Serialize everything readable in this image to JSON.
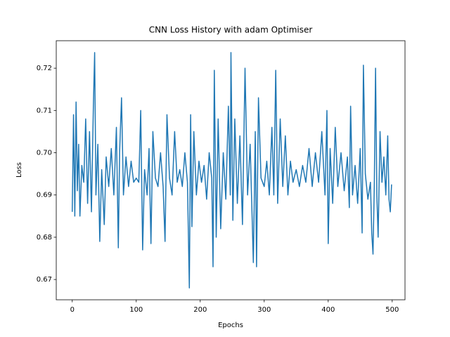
{
  "chart_data": {
    "type": "line",
    "title": "CNN Loss History with adam Optimiser",
    "x_label": "Epochs",
    "y_label": "Loss",
    "x": [
      0,
      2,
      4,
      6,
      8,
      10,
      12,
      15,
      18,
      21,
      24,
      27,
      30,
      33,
      35,
      37,
      40,
      43,
      46,
      50,
      53,
      57,
      61,
      65,
      69,
      72,
      74,
      77,
      80,
      84,
      88,
      92,
      96,
      100,
      104,
      107,
      110,
      113,
      117,
      120,
      123,
      126,
      130,
      134,
      138,
      142,
      145,
      148,
      152,
      156,
      160,
      164,
      168,
      172,
      176,
      180,
      183,
      185,
      187,
      190,
      194,
      198,
      202,
      206,
      210,
      214,
      218,
      220,
      222,
      225,
      228,
      232,
      236,
      240,
      244,
      247,
      248,
      251,
      254,
      258,
      262,
      266,
      270,
      274,
      278,
      283,
      286,
      288,
      291,
      295,
      300,
      304,
      308,
      312,
      315,
      318,
      321,
      325,
      329,
      333,
      337,
      341,
      345,
      350,
      355,
      360,
      365,
      370,
      375,
      380,
      385,
      390,
      395,
      398,
      400,
      403,
      407,
      411,
      415,
      420,
      425,
      430,
      433,
      435,
      438,
      442,
      446,
      450,
      453,
      455,
      458,
      462,
      466,
      468,
      470,
      472,
      474,
      476,
      478,
      481,
      484,
      487,
      490,
      493,
      495,
      497,
      499
    ],
    "series": [
      {
        "color": "#1f77b4",
        "values": [
          0.686,
          0.709,
          0.685,
          0.712,
          0.691,
          0.702,
          0.685,
          0.697,
          0.693,
          0.708,
          0.688,
          0.705,
          0.686,
          0.711,
          0.7237,
          0.69,
          0.702,
          0.679,
          0.696,
          0.683,
          0.699,
          0.692,
          0.701,
          0.69,
          0.706,
          0.6775,
          0.7,
          0.713,
          0.69,
          0.699,
          0.692,
          0.698,
          0.693,
          0.694,
          0.693,
          0.71,
          0.677,
          0.696,
          0.69,
          0.701,
          0.6785,
          0.705,
          0.694,
          0.692,
          0.7,
          0.692,
          0.679,
          0.709,
          0.694,
          0.69,
          0.705,
          0.693,
          0.696,
          0.692,
          0.7,
          0.693,
          0.668,
          0.709,
          0.6825,
          0.705,
          0.69,
          0.698,
          0.693,
          0.697,
          0.689,
          0.7,
          0.694,
          0.673,
          0.7195,
          0.68,
          0.708,
          0.682,
          0.7,
          0.689,
          0.711,
          0.69,
          0.7237,
          0.684,
          0.708,
          0.688,
          0.704,
          0.683,
          0.72,
          0.69,
          0.702,
          0.674,
          0.705,
          0.673,
          0.713,
          0.694,
          0.692,
          0.698,
          0.69,
          0.706,
          0.69,
          0.7195,
          0.688,
          0.708,
          0.692,
          0.704,
          0.69,
          0.698,
          0.693,
          0.696,
          0.692,
          0.697,
          0.693,
          0.701,
          0.692,
          0.7,
          0.693,
          0.705,
          0.69,
          0.71,
          0.6785,
          0.701,
          0.688,
          0.706,
          0.692,
          0.7,
          0.691,
          0.699,
          0.687,
          0.711,
          0.69,
          0.697,
          0.688,
          0.701,
          0.681,
          0.7207,
          0.695,
          0.689,
          0.693,
          0.681,
          0.676,
          0.692,
          0.72,
          0.69,
          0.68,
          0.705,
          0.693,
          0.699,
          0.69,
          0.704,
          0.689,
          0.686,
          0.6925
        ]
      }
    ],
    "xlim": [
      -25,
      520
    ],
    "xticks": [
      0,
      100,
      200,
      300,
      400,
      500
    ],
    "ylim": [
      0.6652,
      0.7265
    ],
    "yticks": [
      0.67,
      0.68,
      0.69,
      {
        "value": 0.7,
        "label": "0.70"
      },
      0.71,
      0.72
    ]
  }
}
